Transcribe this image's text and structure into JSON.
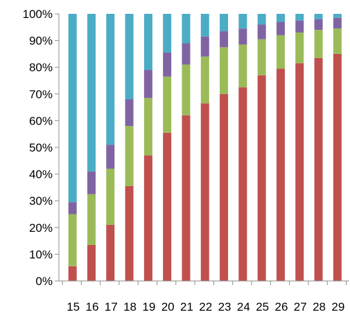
{
  "chart_data": {
    "type": "bar",
    "stacked": true,
    "percent_stacked": true,
    "categories": [
      "15",
      "16",
      "17",
      "18",
      "19",
      "20",
      "21",
      "22",
      "23",
      "24",
      "25",
      "26",
      "27",
      "28",
      "29"
    ],
    "series": [
      {
        "color": "#C0504D",
        "values": [
          5.5,
          13.5,
          21,
          35.5,
          47,
          55.5,
          62,
          66.5,
          70,
          72.5,
          77,
          79.5,
          81.5,
          83.5,
          85
        ]
      },
      {
        "color": "#9BBB59",
        "values": [
          19.5,
          19,
          21,
          22.5,
          21.5,
          21,
          19,
          17.5,
          17.5,
          16,
          13.5,
          12.5,
          11.5,
          10.5,
          9.5
        ]
      },
      {
        "color": "#8064A2",
        "values": [
          4.5,
          8.5,
          9,
          10,
          10.5,
          9,
          8,
          7.5,
          6,
          6,
          5.5,
          5,
          4.5,
          4,
          4
        ]
      },
      {
        "color": "#4BACC6",
        "values": [
          70.5,
          59,
          49,
          32,
          21,
          14.5,
          11,
          8.5,
          6.5,
          5.5,
          4,
          3,
          2.5,
          2,
          1.5
        ]
      }
    ],
    "y_ticks": [
      "0%",
      "10%",
      "20%",
      "30%",
      "40%",
      "50%",
      "60%",
      "70%",
      "80%",
      "90%",
      "100%"
    ],
    "ylim": [
      0,
      100
    ],
    "grid": false,
    "legend": "none",
    "title": "",
    "xlabel": "",
    "ylabel": ""
  }
}
